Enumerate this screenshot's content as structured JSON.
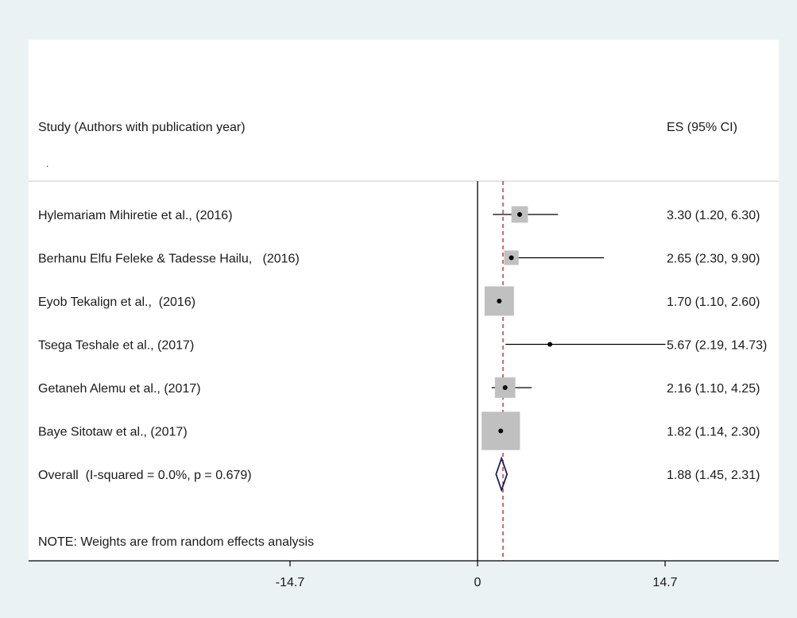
{
  "chart_data": {
    "type": "forest",
    "column_headers": {
      "study": "Study (Authors with publication year)",
      "es": "ES (95% CI)"
    },
    "header_dot": ".",
    "studies": [
      {
        "label": "Hylemariam Mihiretie et al., (2016)",
        "es": 3.3,
        "lo": 1.2,
        "hi": 6.3,
        "es_text": "3.30 (1.20, 6.30)",
        "weight": 0.35
      },
      {
        "label": "Berhanu Elfu Feleke & Tadesse Hailu,   (2016)",
        "es": 2.65,
        "lo": 2.3,
        "hi": 9.9,
        "es_text": "2.65 (2.30, 9.90)",
        "weight": 0.25
      },
      {
        "label": "Eyob Tekalign et al.,  (2016)",
        "es": 1.7,
        "lo": 1.1,
        "hi": 2.6,
        "es_text": "1.70 (1.10, 2.60)",
        "weight": 1.0
      },
      {
        "label": "Tsega Teshale et al., (2017)",
        "es": 5.67,
        "lo": 2.19,
        "hi": 14.73,
        "es_text": "5.67 (2.19, 14.73)",
        "weight": 0.0
      },
      {
        "label": "Getaneh Alemu et al., (2017)",
        "es": 2.16,
        "lo": 1.1,
        "hi": 4.25,
        "es_text": "2.16 (1.10, 4.25)",
        "weight": 0.55
      },
      {
        "label": "Baye Sitotaw et al., (2017)",
        "es": 1.82,
        "lo": 1.14,
        "hi": 2.3,
        "es_text": "1.82 (1.14, 2.30)",
        "weight": 1.45
      }
    ],
    "overall": {
      "label": "Overall  (I-squared = 0.0%, p = 0.679)",
      "es": 1.88,
      "lo": 1.45,
      "hi": 2.31,
      "es_text": "1.88 (1.45, 2.31)"
    },
    "note": "NOTE: Weights are from random effects analysis",
    "x_ticks": [
      {
        "value": -14.7,
        "label": "-14.7"
      },
      {
        "value": 0,
        "label": "0"
      },
      {
        "value": 14.7,
        "label": "14.7"
      }
    ],
    "null_line": 0,
    "colors": {
      "background": "#eaf2f3",
      "box": "#c0c0c0",
      "diamond": "#1c1c5e",
      "overall_line": "#b22222",
      "line": "#000000"
    }
  }
}
